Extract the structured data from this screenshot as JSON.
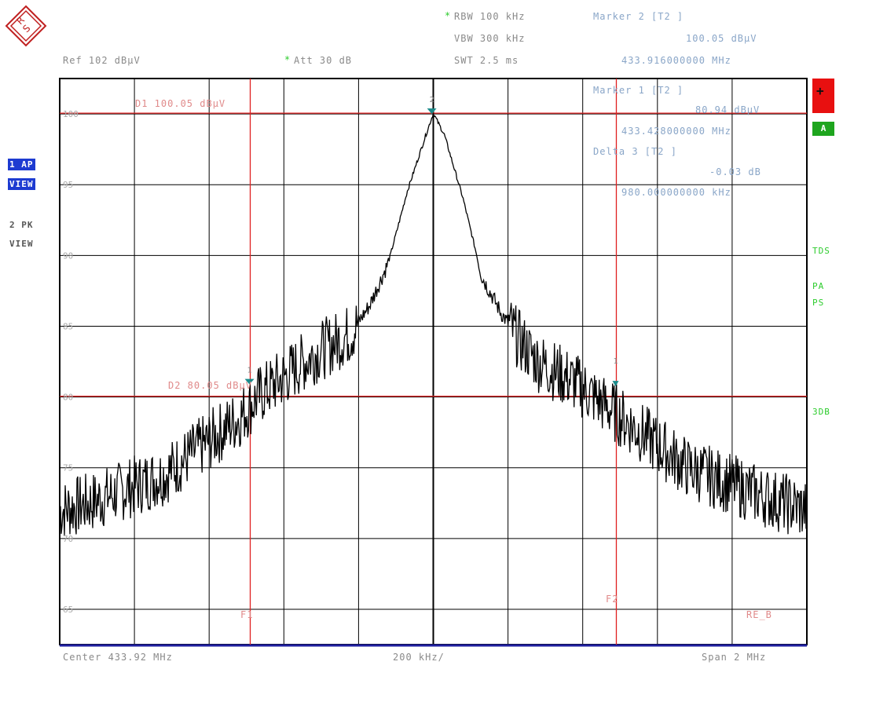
{
  "header": {
    "rbw": "RBW 100 kHz",
    "vbw": "VBW 300 kHz",
    "swt": "SWT 2.5 ms",
    "ref": "Ref 102 dBµV",
    "att": "Att 30 dB",
    "marker2_title": "Marker 2 [T2 ]",
    "marker2_level": "100.05 dBµV",
    "marker2_freq": "433.916000000 MHz"
  },
  "marker_box": {
    "marker1_title": "Marker 1 [T2 ]",
    "marker1_level": "80.94 dBµV",
    "marker1_freq": "433.428000000 MHz",
    "delta_title": "Delta 3 [T2 ]",
    "delta_level": "-0.03 dB",
    "delta_freq": "980.000000000 kHz"
  },
  "left_labels": {
    "trace1_mode": "1 AP",
    "trace1_view": "VIEW",
    "trace2_mode": "2 PK",
    "trace2_view": "VIEW"
  },
  "right_labels": {
    "plus": "+",
    "a": "A",
    "tdf": "TDS",
    "pa": "PA",
    "ps": "PS",
    "db3": "3DB"
  },
  "lines": {
    "d1": "D1 100.05 dBµV",
    "d2": "D2 80.05 dBµV",
    "f1": "F1",
    "f2": "F2",
    "re": "RE_B"
  },
  "footer": {
    "center": "Center 433.92 MHz",
    "div": "200 kHz/",
    "span": "Span 2 MHz"
  },
  "colors": {
    "trace": "#000000",
    "grid": "#000000",
    "limit_lines": "#e02020",
    "marker": "#1a8a8a",
    "bottom_line": "#2020a0"
  },
  "chart_data": {
    "type": "line",
    "title": "",
    "xlabel": "Center 433.92 MHz",
    "ylabel": "dBµV",
    "xlim": [
      432.92,
      434.92
    ],
    "ylim": [
      62.5,
      102.5
    ],
    "ytick_labels": [
      "100",
      "95",
      "90",
      "85",
      "80",
      "75",
      "70",
      "65"
    ],
    "ytick_values": [
      100,
      95,
      90,
      85,
      80,
      75,
      70,
      65
    ],
    "grid": true,
    "series": [
      {
        "x": [
          432.92,
          433.0,
          433.1,
          433.2,
          433.3,
          433.4,
          433.45,
          433.5,
          433.6,
          433.7,
          433.75,
          433.8,
          433.85,
          433.9,
          433.92,
          433.95,
          434.0,
          434.05,
          434.1,
          434.15,
          434.2,
          434.3,
          434.4,
          434.5,
          434.6,
          434.7,
          434.8,
          434.92
        ],
        "values": [
          72.0,
          72.5,
          73.5,
          74.5,
          76.5,
          78.5,
          80.0,
          81.0,
          83.0,
          84.5,
          86.5,
          89.5,
          94.5,
          98.5,
          100.05,
          98.5,
          94.0,
          88.5,
          86.0,
          84.0,
          82.5,
          81.0,
          79.0,
          77.0,
          75.0,
          74.0,
          73.0,
          72.0
        ]
      }
    ],
    "markers": [
      {
        "label": "2",
        "x": 433.916,
        "y": 100.05
      },
      {
        "label": "1",
        "x": 433.428,
        "y": 80.94
      }
    ],
    "display_lines": [
      {
        "label": "D1",
        "y": 100.05
      },
      {
        "label": "D2",
        "y": 80.05
      }
    ],
    "frequency_lines": [
      {
        "label": "F1",
        "x": 433.43
      },
      {
        "label": "F2",
        "x": 434.41
      }
    ]
  }
}
